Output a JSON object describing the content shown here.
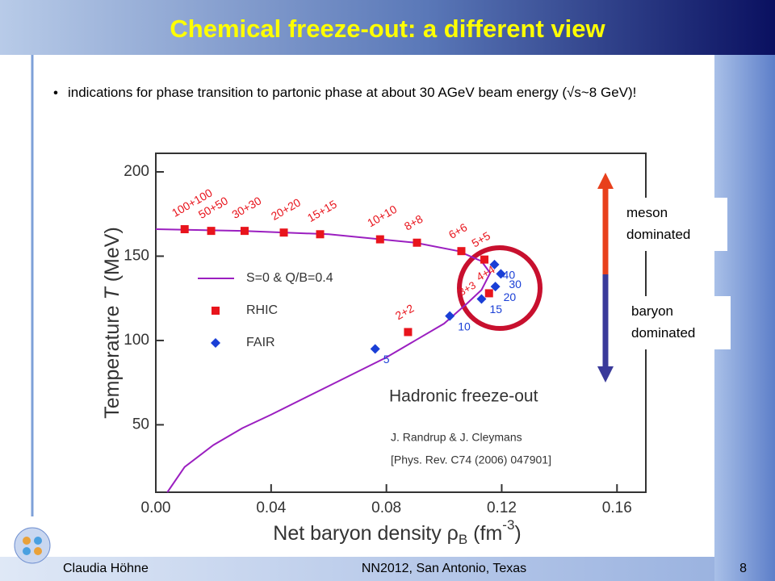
{
  "slide": {
    "title": "Chemical freeze-out: a different view",
    "bullet": "indications for phase transition to partonic phase at about 30 AGeV beam energy (√s~8 GeV)!",
    "side_labels": [
      "meson dominated",
      "baryon dominated"
    ],
    "footer": {
      "author": "Claudia Höhne",
      "event": "NN2012, San Antonio, Texas",
      "page": "8"
    }
  },
  "chart_data": {
    "type": "scatter",
    "ylabel": [
      "Temperature ",
      "T",
      " (MeV)"
    ],
    "xlabel": [
      "Net baryon density ρ",
      "B",
      " (fm",
      "-3",
      ")"
    ],
    "xlim": [
      0,
      0.17
    ],
    "ylim": [
      10,
      211
    ],
    "xticks": [
      {
        "value": 0,
        "label": "0.00"
      },
      {
        "value": 0.04,
        "label": "0.04"
      },
      {
        "value": 0.08,
        "label": "0.08"
      },
      {
        "value": 0.12,
        "label": "0.12"
      },
      {
        "value": 0.16,
        "label": "0.16"
      }
    ],
    "yticks": [
      50,
      100,
      150,
      200
    ],
    "annotations": [
      "Hadronic freeze-out",
      "J. Randrup & J. Cleymans",
      "[Phys. Rev. C74 (2006) 047901]",
      "3+3"
    ],
    "series": [
      {
        "name": "S=0 & Q/B=0.4",
        "color": "#9b1fc0",
        "mark": "line",
        "x": [
          0.004,
          0.01,
          0.02,
          0.03,
          0.04,
          0.06,
          0.08,
          0.09,
          0.1,
          0.108,
          0.113,
          0.116,
          0.113,
          0.105,
          0.09,
          0.06,
          0.03,
          0
        ],
        "values": [
          10,
          25,
          38,
          48,
          56,
          73,
          90,
          100,
          110,
          122,
          130,
          140,
          147,
          153,
          158,
          163,
          165,
          166
        ]
      },
      {
        "name": "RHIC",
        "color": "#e8141c",
        "mark": "square",
        "x": [
          0.01,
          0.0192,
          0.0308,
          0.0444,
          0.057,
          0.0778,
          0.0906,
          0.106,
          0.114,
          0.1156,
          0.0875
        ],
        "values": [
          166,
          165,
          165,
          164,
          163,
          160,
          158,
          153,
          148,
          128,
          105
        ],
        "labels": [
          "100+100",
          "50+50",
          "30+30",
          "20+20",
          "15+15",
          "10+10",
          "8+8",
          "6+6",
          "5+5",
          "4+4",
          "2+2"
        ]
      },
      {
        "name": "FAIR",
        "color": "#1a3fd6",
        "mark": "diamond",
        "x": [
          0.0761,
          0.102,
          0.113,
          0.1178,
          0.1197,
          0.1175
        ],
        "values": [
          95,
          114.5,
          124.6,
          132,
          139.5,
          145
        ],
        "labels": [
          "5",
          "10",
          "15",
          "20",
          "30",
          "40"
        ]
      }
    ]
  }
}
